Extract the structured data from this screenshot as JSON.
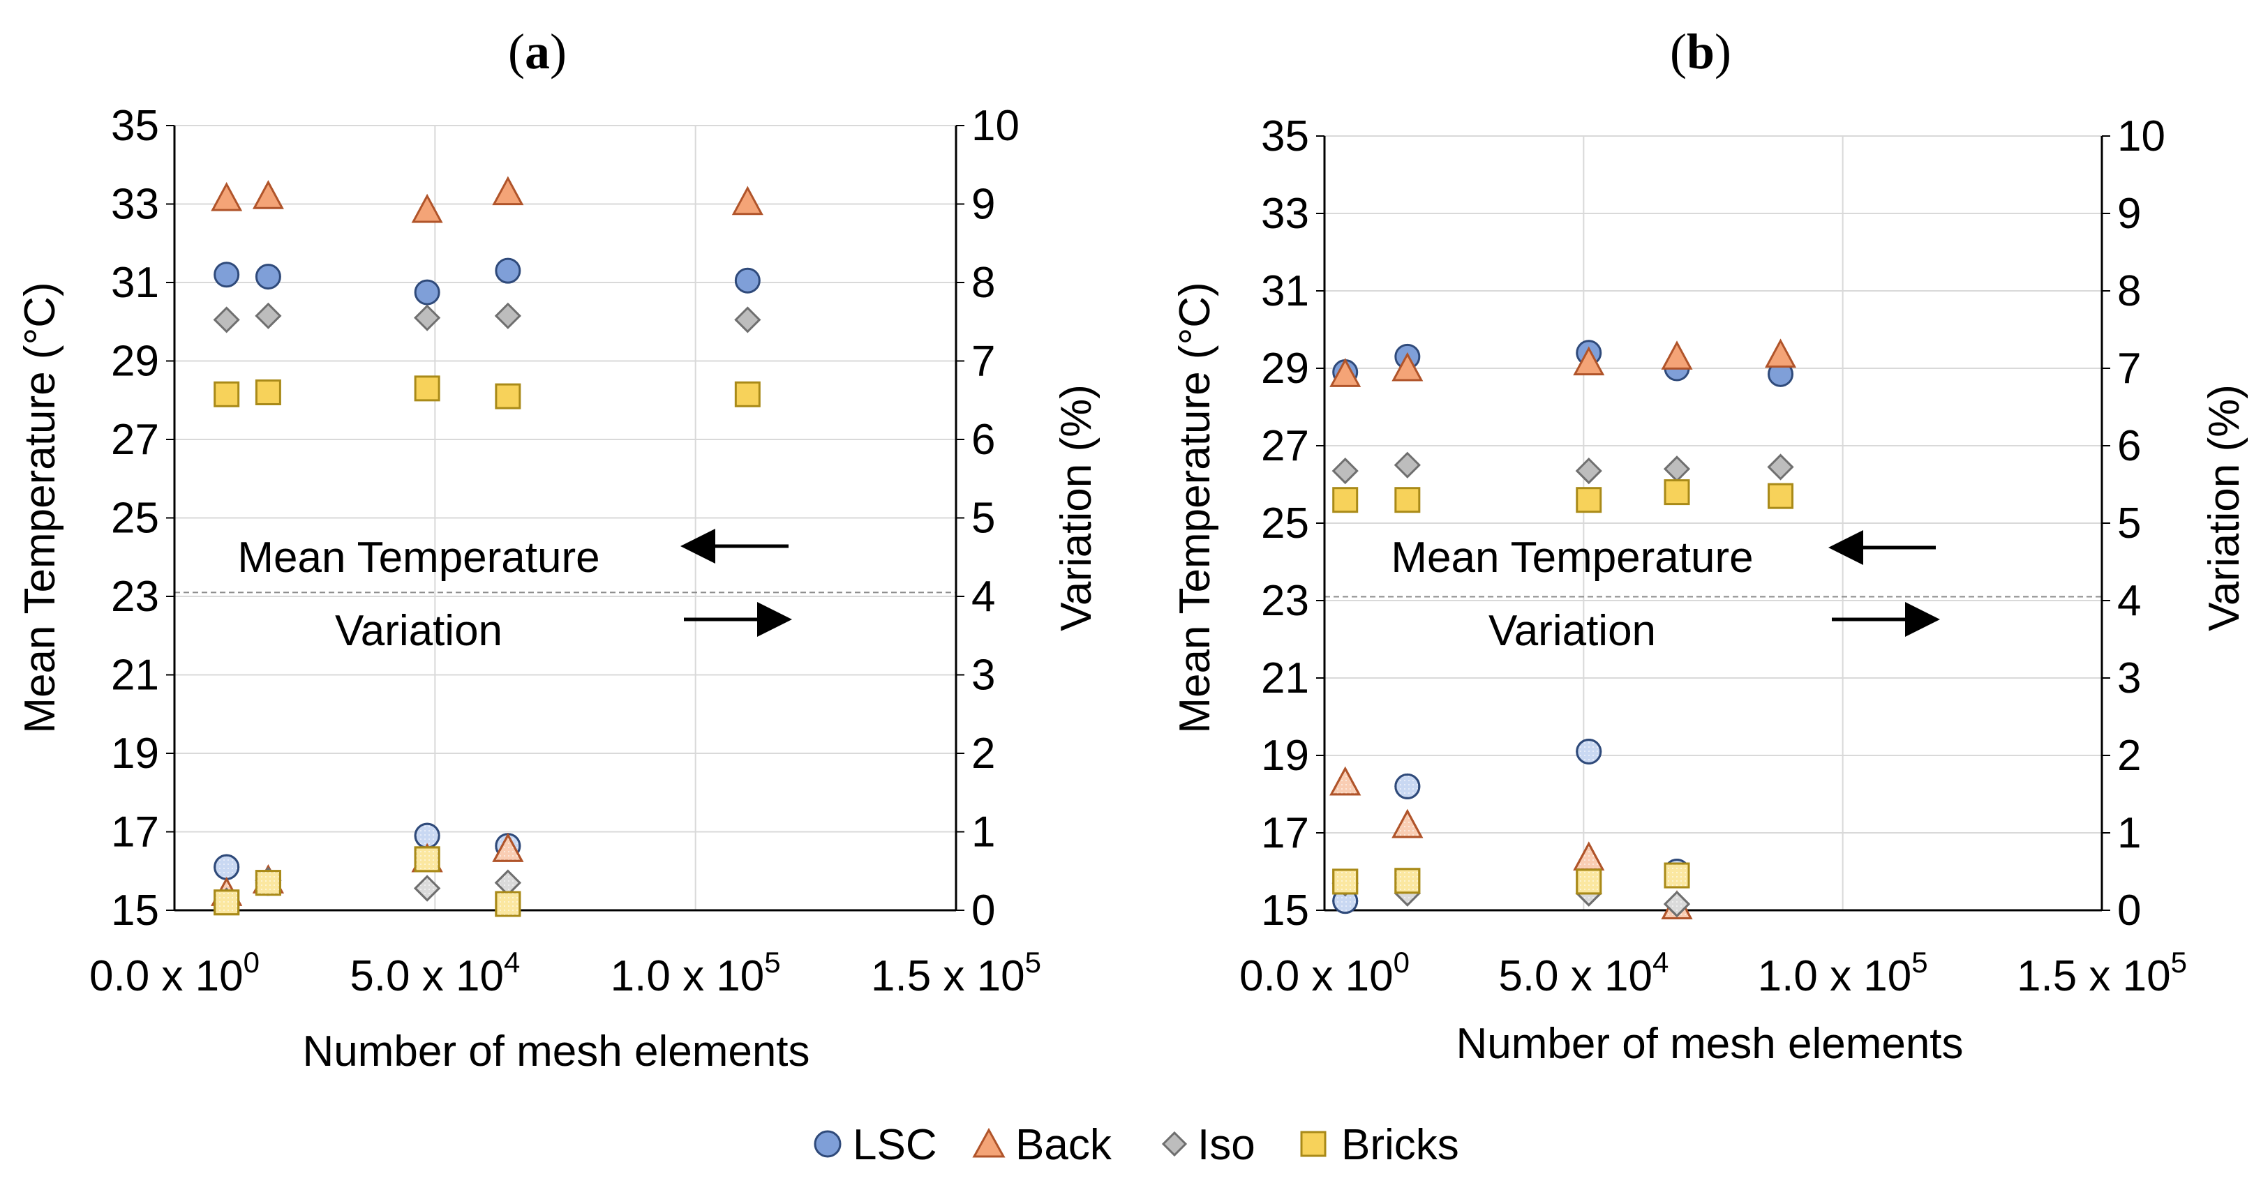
{
  "chart_data": [
    {
      "type": "scatter",
      "panel_label": "a",
      "xlabel": "Number of mesh elements",
      "ylabel_left": "Mean Temperature (°C)",
      "ylabel_right": "Variation (%)",
      "xlim": [
        0,
        150000
      ],
      "ylim_left": [
        15,
        35
      ],
      "ylim_right": [
        0,
        10
      ],
      "x_ticks": [
        {
          "mantissa": "0.0",
          "exp": "0",
          "value": 0
        },
        {
          "mantissa": "5.0",
          "exp": "4",
          "value": 50000
        },
        {
          "mantissa": "1.0",
          "exp": "5",
          "value": 100000
        },
        {
          "mantissa": "1.5",
          "exp": "5",
          "value": 150000
        }
      ],
      "y_ticks_left": [
        "15",
        "17",
        "19",
        "21",
        "23",
        "25",
        "27",
        "29",
        "31",
        "33",
        "35"
      ],
      "y_ticks_right": [
        "0",
        "1",
        "2",
        "3",
        "4",
        "5",
        "6",
        "7",
        "8",
        "9",
        "10"
      ],
      "annotation_top": "Mean Temperature",
      "annotation_bottom": "Variation",
      "divider_y": 23.1,
      "mean_temperature": [
        {
          "name": "LSC",
          "x": [
            10000,
            18000,
            48500,
            64000,
            110000
          ],
          "y": [
            31.2,
            31.15,
            30.75,
            31.3,
            31.05
          ]
        },
        {
          "name": "Back",
          "x": [
            10000,
            18000,
            48500,
            64000,
            110000
          ],
          "y": [
            33.15,
            33.2,
            32.85,
            33.3,
            33.05
          ]
        },
        {
          "name": "Iso",
          "x": [
            10000,
            18000,
            48500,
            64000,
            110000
          ],
          "y": [
            30.05,
            30.15,
            30.1,
            30.15,
            30.05
          ]
        },
        {
          "name": "Bricks",
          "x": [
            10000,
            18000,
            48500,
            64000,
            110000
          ],
          "y": [
            28.15,
            28.2,
            28.3,
            28.1,
            28.15
          ]
        }
      ],
      "variation": [
        {
          "name": "LSC",
          "x": [
            10000,
            18000,
            48500,
            64000
          ],
          "y": [
            0.55,
            0.35,
            0.95,
            0.82
          ]
        },
        {
          "name": "Back",
          "x": [
            10000,
            18000,
            48500,
            64000
          ],
          "y": [
            0.22,
            0.38,
            0.65,
            0.78
          ]
        },
        {
          "name": "Iso",
          "x": [
            10000,
            18000,
            48500,
            64000
          ],
          "y": [
            0.12,
            0.38,
            0.28,
            0.35
          ]
        },
        {
          "name": "Bricks",
          "x": [
            10000,
            18000,
            48500,
            64000
          ],
          "y": [
            0.1,
            0.35,
            0.65,
            0.08
          ]
        }
      ]
    },
    {
      "type": "scatter",
      "panel_label": "b",
      "xlabel": "Number of mesh elements",
      "ylabel_left": "Mean Temperature (°C)",
      "ylabel_right": "Variation (%)",
      "xlim": [
        0,
        150000
      ],
      "ylim_left": [
        15,
        35
      ],
      "ylim_right": [
        0,
        10
      ],
      "x_ticks": [
        {
          "mantissa": "0.0",
          "exp": "0",
          "value": 0
        },
        {
          "mantissa": "5.0",
          "exp": "4",
          "value": 50000
        },
        {
          "mantissa": "1.0",
          "exp": "5",
          "value": 100000
        },
        {
          "mantissa": "1.5",
          "exp": "5",
          "value": 150000
        }
      ],
      "y_ticks_left": [
        "15",
        "17",
        "19",
        "21",
        "23",
        "25",
        "27",
        "29",
        "31",
        "33",
        "35"
      ],
      "y_ticks_right": [
        "0",
        "1",
        "2",
        "3",
        "4",
        "5",
        "6",
        "7",
        "8",
        "9",
        "10"
      ],
      "annotation_top": "Mean Temperature",
      "annotation_bottom": "Variation",
      "divider_y": 23.1,
      "mean_temperature": [
        {
          "name": "LSC",
          "x": [
            4000,
            16000,
            51000,
            68000,
            88000
          ],
          "y": [
            28.9,
            29.3,
            29.4,
            29.0,
            28.85
          ]
        },
        {
          "name": "Back",
          "x": [
            4000,
            16000,
            51000,
            68000,
            88000
          ],
          "y": [
            28.85,
            29.0,
            29.15,
            29.3,
            29.35
          ]
        },
        {
          "name": "Iso",
          "x": [
            4000,
            16000,
            51000,
            68000,
            88000
          ],
          "y": [
            26.35,
            26.5,
            26.35,
            26.4,
            26.45
          ]
        },
        {
          "name": "Bricks",
          "x": [
            4000,
            16000,
            51000,
            68000,
            88000
          ],
          "y": [
            25.6,
            25.6,
            25.6,
            25.8,
            25.7
          ]
        }
      ],
      "variation": [
        {
          "name": "LSC",
          "x": [
            4000,
            16000,
            51000,
            68000
          ],
          "y": [
            0.12,
            1.6,
            2.05,
            0.5
          ]
        },
        {
          "name": "Back",
          "x": [
            4000,
            16000,
            51000,
            68000
          ],
          "y": [
            1.65,
            1.1,
            0.68,
            0.05
          ]
        },
        {
          "name": "Iso",
          "x": [
            4000,
            16000,
            51000,
            68000
          ],
          "y": [
            0.35,
            0.22,
            0.22,
            0.08
          ]
        },
        {
          "name": "Bricks",
          "x": [
            4000,
            16000,
            51000,
            68000
          ],
          "y": [
            0.37,
            0.38,
            0.37,
            0.45
          ]
        }
      ]
    }
  ],
  "legend": [
    {
      "name": "LSC",
      "marker": "circle",
      "fill": "#7f9fd8",
      "stroke": "#2f4a7a"
    },
    {
      "name": "Back",
      "marker": "triangle",
      "fill": "#f4a477",
      "stroke": "#b0542a"
    },
    {
      "name": "Iso",
      "marker": "diamond",
      "fill": "#bdbdbd",
      "stroke": "#6f6f6f"
    },
    {
      "name": "Bricks",
      "marker": "square",
      "fill": "#f7d25a",
      "stroke": "#a98a18"
    }
  ],
  "variation_colors": {
    "LSC": "#c9d8f2",
    "Back": "#f9cdb3",
    "Iso": "#dadada",
    "Bricks": "#fbe7a0"
  }
}
